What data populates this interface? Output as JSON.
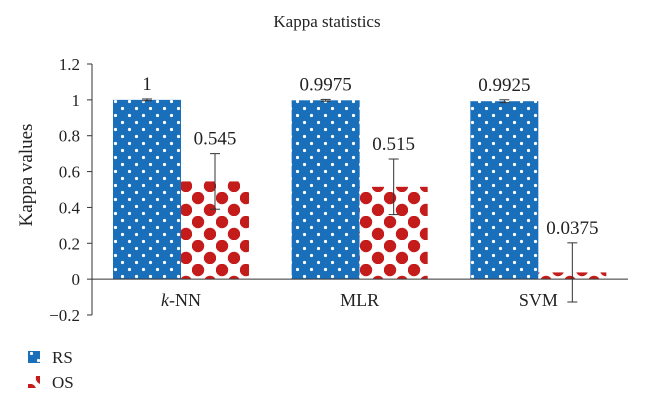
{
  "chart_data": {
    "type": "bar",
    "title": "Kappa statistics",
    "xlabel": "",
    "ylabel": "Kappa values",
    "ylim": [
      -0.2,
      1.2
    ],
    "yticks": [
      "1.2",
      "1",
      "0.8",
      "0.6",
      "0.4",
      "0.2",
      "0",
      "−0.2"
    ],
    "ytick_values": [
      1.2,
      1.0,
      0.8,
      0.6,
      0.4,
      0.2,
      0,
      -0.2
    ],
    "categories": [
      "k-NN",
      "MLR",
      "SVM"
    ],
    "category_labels": [
      {
        "italic": "k",
        "rest": "-NN"
      },
      {
        "italic": "",
        "rest": "MLR"
      },
      {
        "italic": "",
        "rest": "SVM"
      }
    ],
    "series": [
      {
        "name": "RS",
        "values": [
          1,
          0.9975,
          0.9925
        ],
        "labels": [
          "1",
          "0.9975",
          "0.9925"
        ],
        "error": [
          0.005,
          0.005,
          0.008
        ],
        "color": "#1a6fba",
        "dot_color": "#ffffff"
      },
      {
        "name": "OS",
        "values": [
          0.545,
          0.515,
          0.0375
        ],
        "labels": [
          "0.545",
          "0.515",
          "0.0375"
        ],
        "error": [
          0.155,
          0.155,
          0.165
        ],
        "color": "#c41b1b",
        "dot_color": "#ffffff"
      }
    ],
    "grid": false,
    "legend_position": "bottom-left"
  }
}
